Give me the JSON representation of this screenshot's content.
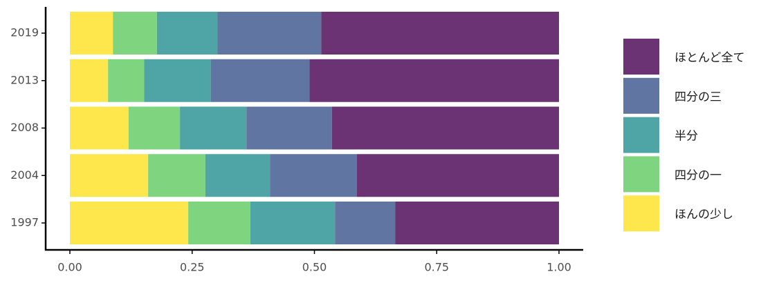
{
  "chart_data": {
    "type": "stacked-barh",
    "categories": [
      "2019",
      "2013",
      "2008",
      "2004",
      "1997"
    ],
    "series": [
      {
        "name": "ほんの少し",
        "color": "#FDE74C",
        "values": [
          0.088,
          0.078,
          0.12,
          0.16,
          0.242
        ]
      },
      {
        "name": "四分の一",
        "color": "#7FD47F",
        "values": [
          0.09,
          0.074,
          0.105,
          0.117,
          0.127
        ]
      },
      {
        "name": "半分",
        "color": "#4FA5A5",
        "values": [
          0.124,
          0.136,
          0.136,
          0.132,
          0.173
        ]
      },
      {
        "name": "四分の三",
        "color": "#6175A2",
        "values": [
          0.212,
          0.202,
          0.175,
          0.178,
          0.123
        ]
      },
      {
        "name": "ほとんど全て",
        "color": "#6B3373",
        "values": [
          0.486,
          0.51,
          0.464,
          0.413,
          0.335
        ]
      }
    ],
    "xlim": [
      0,
      1
    ],
    "xticks": [
      {
        "value": 0,
        "label": "0.00"
      },
      {
        "value": 0.25,
        "label": "0.25"
      },
      {
        "value": 0.5,
        "label": "0.50"
      },
      {
        "value": 0.75,
        "label": "0.75"
      },
      {
        "value": 1,
        "label": "1.00"
      }
    ],
    "legend": "right"
  }
}
